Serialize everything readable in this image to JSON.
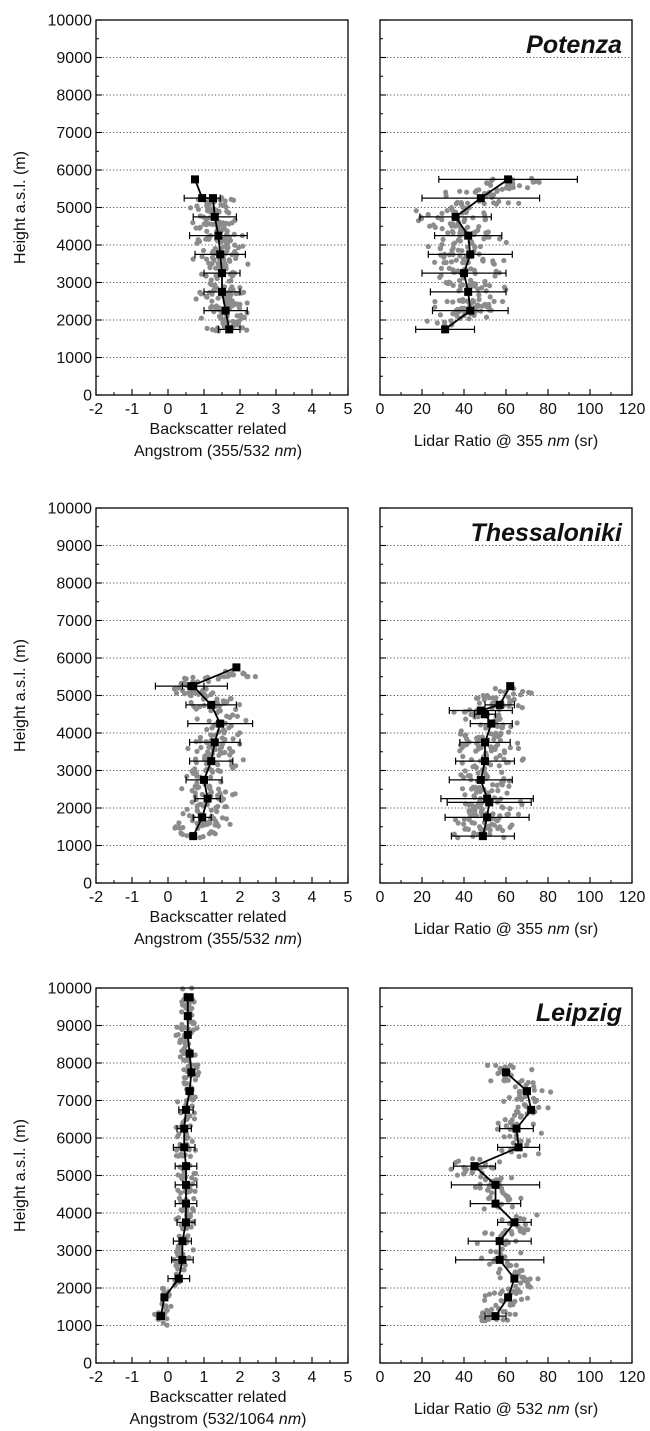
{
  "figure": {
    "shared_ylabel": "Height a.s.l. (m)",
    "y_ticks": [
      "0",
      "1000",
      "2000",
      "3000",
      "4000",
      "5000",
      "6000",
      "7000",
      "8000",
      "9000",
      "10000"
    ],
    "angstrom_xticks": [
      "-2",
      "-1",
      "0",
      "1",
      "2",
      "3",
      "4",
      "5"
    ],
    "lidar_xticks": [
      "0",
      "20",
      "40",
      "60",
      "80",
      "100",
      "120"
    ]
  },
  "rows": [
    {
      "station": "Potenza",
      "left_xlabel_line1": "Backscatter related",
      "left_xlabel_line2_pre": "Angstrom (355/532 ",
      "left_xlabel_line2_unit": "nm",
      "left_xlabel_line2_post": ")",
      "right_xlabel_pre": "Lidar Ratio @ 355 ",
      "right_xlabel_unit": "nm",
      "right_xlabel_post": " (sr)"
    },
    {
      "station": "Thessaloniki",
      "left_xlabel_line1": "Backscatter related",
      "left_xlabel_line2_pre": "Angstrom (355/532 ",
      "left_xlabel_line2_unit": "nm",
      "left_xlabel_line2_post": ")",
      "right_xlabel_pre": "Lidar Ratio @ 355 ",
      "right_xlabel_unit": "nm",
      "right_xlabel_post": " (sr)"
    },
    {
      "station": "Leipzig",
      "left_xlabel_line1": "Backscatter related",
      "left_xlabel_line2_pre": "Angstrom (532/1064 ",
      "left_xlabel_line2_unit": "nm",
      "left_xlabel_line2_post": ")",
      "right_xlabel_pre": "Lidar Ratio @ 532 ",
      "right_xlabel_unit": "nm",
      "right_xlabel_post": " (sr)"
    }
  ],
  "colors": {
    "scatter": "#8c8c8c",
    "profile": "#000000",
    "grid": "#555555"
  },
  "chart_data": [
    {
      "type": "scatter",
      "panel": "Potenza Angstrom",
      "title": "",
      "xlabel": "Backscatter related Angstrom (355/532 nm)",
      "ylabel": "Height a.s.l. (m)",
      "xlim": [
        -2,
        5
      ],
      "ylim": [
        0,
        10000
      ],
      "grid": "horizontal dotted",
      "scatter_cloud": {
        "x_range": [
          -0.2,
          3.0
        ],
        "y_range": [
          1700,
          5300
        ]
      },
      "series": [
        {
          "name": "",
          "x": [
            1.7,
            1.6,
            1.5,
            1.5,
            1.45,
            1.4,
            1.3,
            1.25,
            0.95,
            0.75
          ],
          "y": [
            1750,
            2250,
            2750,
            3250,
            3750,
            4250,
            4750,
            5250,
            5250,
            5750
          ],
          "xerr": [
            0.3,
            0.6,
            0.5,
            0.5,
            0.7,
            0.8,
            0.6,
            0.0,
            0.5,
            0.0
          ]
        }
      ]
    },
    {
      "type": "scatter",
      "panel": "Potenza Lidar Ratio",
      "title": "",
      "xlabel": "Lidar Ratio @ 355 nm (sr)",
      "ylabel": "",
      "xlim": [
        0,
        120
      ],
      "ylim": [
        0,
        10000
      ],
      "grid": "horizontal dotted",
      "scatter_cloud": {
        "x_range": [
          12,
          95
        ],
        "y_range": [
          1800,
          5800
        ]
      },
      "series": [
        {
          "name": "",
          "x": [
            31,
            43,
            42,
            40,
            43,
            42,
            36,
            48,
            61
          ],
          "y": [
            1750,
            2250,
            2750,
            3250,
            3750,
            4250,
            4750,
            5250,
            5750
          ],
          "xerr": [
            14,
            18,
            18,
            20,
            20,
            16,
            17,
            28,
            33
          ]
        }
      ]
    },
    {
      "type": "scatter",
      "panel": "Thessaloniki Angstrom",
      "title": "",
      "xlabel": "Backscatter related Angstrom (355/532 nm)",
      "ylabel": "Height a.s.l. (m)",
      "xlim": [
        -2,
        5
      ],
      "ylim": [
        0,
        10000
      ],
      "grid": "horizontal dotted",
      "scatter_cloud": {
        "x_range": [
          -0.6,
          3.1
        ],
        "y_range": [
          1200,
          5700
        ]
      },
      "series": [
        {
          "name": "",
          "x": [
            0.7,
            0.95,
            1.1,
            1.0,
            1.2,
            1.3,
            1.45,
            1.2,
            0.7,
            0.65,
            1.9
          ],
          "y": [
            1250,
            1750,
            2250,
            2750,
            3250,
            3750,
            4250,
            4750,
            5250,
            5250,
            5750
          ],
          "xerr": [
            0,
            0.25,
            0.35,
            0.5,
            0.6,
            0.7,
            0.9,
            0.7,
            0.3,
            1.0,
            0
          ]
        }
      ]
    },
    {
      "type": "scatter",
      "panel": "Thessaloniki Lidar Ratio",
      "title": "",
      "xlabel": "Lidar Ratio @ 355 nm (sr)",
      "ylabel": "",
      "xlim": [
        0,
        120
      ],
      "ylim": [
        0,
        10000
      ],
      "grid": "horizontal dotted",
      "scatter_cloud": {
        "x_range": [
          30,
          105
        ],
        "y_range": [
          1200,
          5200
        ]
      },
      "series": [
        {
          "name": "",
          "x": [
            49,
            51,
            52,
            51,
            48,
            50,
            50,
            53,
            50,
            48,
            57,
            62
          ],
          "y": [
            1250,
            1750,
            2150,
            2250,
            2750,
            3250,
            3750,
            4250,
            4500,
            4600,
            4750,
            5250
          ],
          "xerr": [
            15,
            20,
            20,
            22,
            15,
            14,
            12,
            10,
            5,
            15,
            7,
            0
          ]
        }
      ]
    },
    {
      "type": "scatter",
      "panel": "Leipzig Angstrom",
      "title": "",
      "xlabel": "Backscatter related Angstrom (532/1064 nm)",
      "ylabel": "Height a.s.l. (m)",
      "xlim": [
        -2,
        5
      ],
      "ylim": [
        0,
        10000
      ],
      "grid": "horizontal dotted",
      "scatter_cloud": {
        "x_range": [
          -0.5,
          1.0
        ],
        "y_range": [
          1000,
          10000
        ]
      },
      "series": [
        {
          "name": "",
          "x": [
            -0.2,
            -0.1,
            0.3,
            0.4,
            0.4,
            0.5,
            0.5,
            0.5,
            0.5,
            0.45,
            0.45,
            0.5,
            0.6,
            0.65,
            0.6,
            0.55,
            0.55,
            0.55,
            0.6,
            0.6
          ],
          "y": [
            1250,
            1750,
            2250,
            2750,
            3250,
            3750,
            4250,
            4750,
            5250,
            5750,
            6250,
            6750,
            7250,
            7750,
            8250,
            8750,
            9250,
            9750,
            9750,
            9750
          ],
          "xerr": [
            0.1,
            0,
            0.3,
            0.3,
            0.25,
            0.25,
            0.3,
            0.3,
            0.3,
            0.3,
            0.2,
            0.2,
            0.1,
            0,
            0,
            0,
            0,
            0,
            0,
            0
          ]
        }
      ]
    },
    {
      "type": "scatter",
      "panel": "Leipzig Lidar Ratio",
      "title": "",
      "xlabel": "Lidar Ratio @ 532 nm (sr)",
      "ylabel": "",
      "xlim": [
        0,
        120
      ],
      "ylim": [
        0,
        10000
      ],
      "grid": "horizontal dotted",
      "scatter_cloud": {
        "x_range": [
          28,
          82
        ],
        "y_range": [
          1100,
          8000
        ]
      },
      "series": [
        {
          "name": "",
          "x": [
            55,
            61,
            64,
            57,
            57,
            64,
            55,
            55,
            45,
            66,
            65,
            72,
            70,
            60
          ],
          "y": [
            1250,
            1750,
            2250,
            2750,
            3250,
            3750,
            4250,
            4750,
            5250,
            5750,
            6250,
            6750,
            7250,
            7750
          ],
          "xerr": [
            5,
            0,
            0,
            21,
            15,
            8,
            12,
            21,
            10,
            10,
            8,
            0,
            0,
            0
          ]
        }
      ]
    }
  ]
}
